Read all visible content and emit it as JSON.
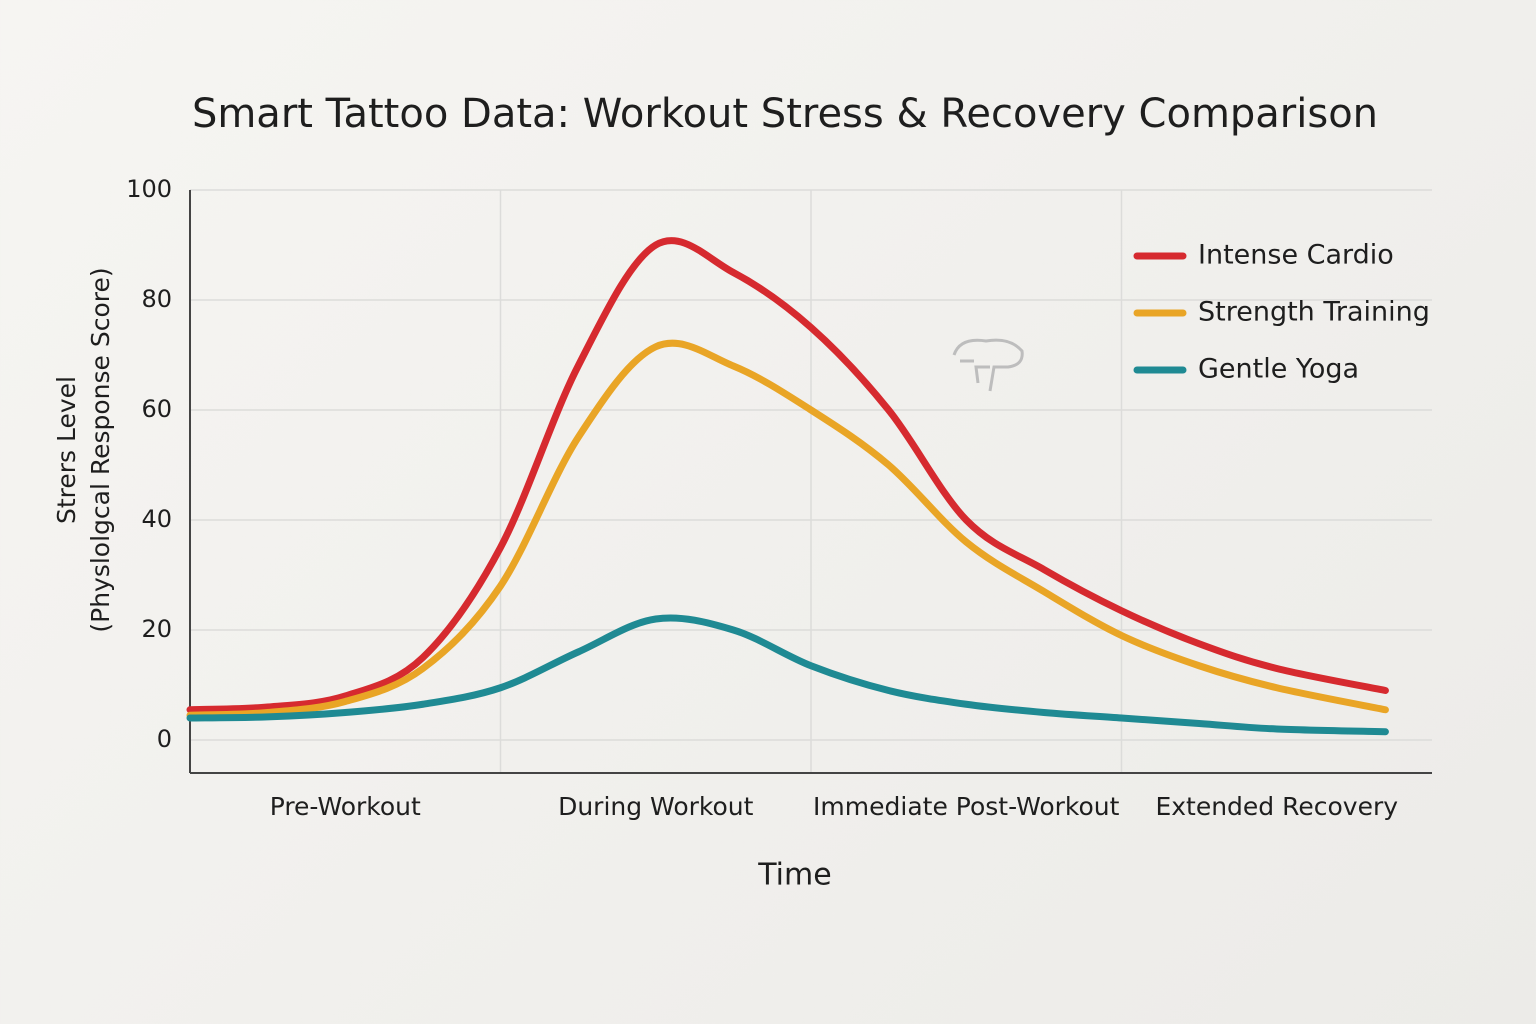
{
  "chart_data": {
    "type": "line",
    "title": "Smart Tattoo Data: Workout Stress & Recovery Comparison",
    "xlabel": "Time",
    "ylabel": [
      "Strers Level",
      "(Physlolgcal Response Score)"
    ],
    "x": [
      0,
      0.25,
      0.5,
      0.75,
      1,
      1.25,
      1.5,
      1.75,
      2,
      2.25,
      2.5,
      2.75,
      3,
      3.25,
      3.5,
      3.85
    ],
    "xlim": [
      0,
      4
    ],
    "xticks": [
      {
        "value": 0.5,
        "label": "Pre-Workout"
      },
      {
        "value": 1.5,
        "label": "During Workout"
      },
      {
        "value": 2.5,
        "label": "Immediate Post-Workout"
      },
      {
        "value": 3.5,
        "label": "Extended Recovery"
      }
    ],
    "ylim": [
      -6,
      100
    ],
    "yticks": [
      0,
      20,
      40,
      60,
      80,
      100
    ],
    "grid": true,
    "legend": "upper right",
    "series": [
      {
        "name": "Intense Cardio",
        "color": "#d62a2f",
        "values": [
          5.5,
          6,
          8,
          15,
          35,
          68,
          90,
          85,
          75,
          60,
          40,
          31,
          23.5,
          17.5,
          13,
          9
        ]
      },
      {
        "name": "Strength Training",
        "color": "#e9a526",
        "values": [
          4.5,
          5,
          7,
          13,
          28,
          55,
          71.5,
          68,
          60,
          50,
          36,
          27,
          19,
          13.5,
          9.5,
          5.5
        ]
      },
      {
        "name": "Gentle Yoga",
        "color": "#1f8a93",
        "values": [
          4,
          4.2,
          5,
          6.5,
          9.5,
          16,
          22,
          20,
          13.5,
          9,
          6.5,
          5,
          4,
          3,
          2,
          1.5
        ]
      }
    ]
  }
}
